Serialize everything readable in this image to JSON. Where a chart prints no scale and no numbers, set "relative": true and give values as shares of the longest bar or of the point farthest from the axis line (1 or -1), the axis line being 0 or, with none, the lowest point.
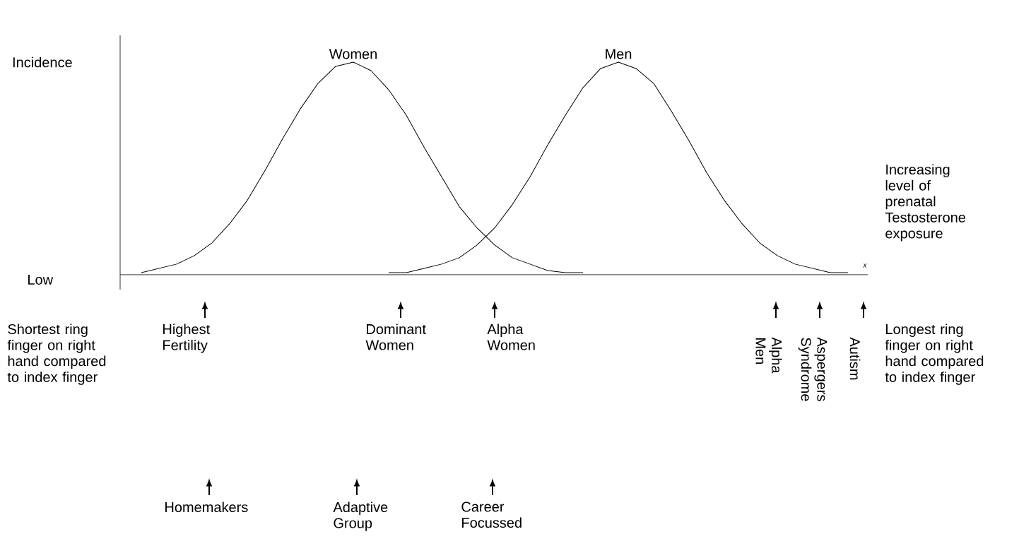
{
  "chart_data": {
    "type": "line",
    "relative": true,
    "xlabel": "Increasing level of prenatal Testosterone exposure",
    "ylabel": "Incidence",
    "categories": [
      null,
      null,
      null,
      null,
      null,
      null,
      null,
      null,
      null,
      null,
      null,
      null,
      null,
      null,
      null,
      null,
      null,
      null,
      null,
      null,
      null,
      null,
      null,
      null,
      null,
      null,
      null,
      null,
      null,
      null,
      null,
      null,
      null,
      null,
      null,
      null,
      null,
      null,
      null,
      null,
      null
    ],
    "series": [
      {
        "name": "Women",
        "color": "#000000",
        "values": [
          0.01,
          0.03,
          0.05,
          0.09,
          0.15,
          0.24,
          0.35,
          0.49,
          0.64,
          0.78,
          0.9,
          0.98,
          1.0,
          0.96,
          0.87,
          0.75,
          0.6,
          0.46,
          0.32,
          0.22,
          0.14,
          0.08,
          0.05,
          0.02,
          0.01,
          0.01,
          null,
          null,
          null,
          null,
          null,
          null,
          null,
          null,
          null,
          null,
          null,
          null,
          null,
          null,
          null
        ]
      },
      {
        "name": "Men",
        "color": "#000000",
        "values": [
          null,
          null,
          null,
          null,
          null,
          null,
          null,
          null,
          null,
          null,
          null,
          null,
          null,
          null,
          0.01,
          0.01,
          0.03,
          0.05,
          0.08,
          0.14,
          0.22,
          0.33,
          0.46,
          0.61,
          0.75,
          0.88,
          0.97,
          1.0,
          0.97,
          0.9,
          0.77,
          0.63,
          0.48,
          0.35,
          0.24,
          0.15,
          0.09,
          0.05,
          0.03,
          0.01,
          0.01
        ]
      }
    ],
    "annotations": [
      "Low",
      "Shortest ring finger on right hand compared to index finger",
      "Highest Fertility",
      "Dominant Women",
      "Alpha Women",
      "Alpha Men",
      "Aspergers Syndrome",
      "Autism",
      "Longest ring finger on right hand compared to index finger",
      "Homemakers",
      "Adaptive Group",
      "Career Focussed",
      "x"
    ]
  }
}
